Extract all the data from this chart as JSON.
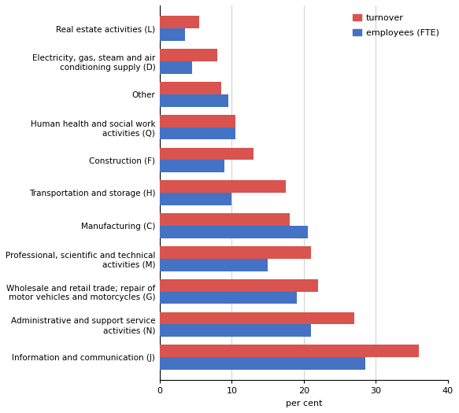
{
  "categories": [
    "Information and communication (J)",
    "Administrative and support service\nactivities (N)",
    "Wholesale and retail trade; repair of\nmotor vehicles and motorcycles (G)",
    "Professional, scientific and technical\nactivities (M)",
    "Manufacturing (C)",
    "Transportation and storage (H)",
    "Construction (F)",
    "Human health and social work\nactivities (Q)",
    "Other",
    "Electricity, gas, steam and air\nconditioning supply (D)",
    "Real estate activities (L)"
  ],
  "turnover": [
    36.0,
    27.0,
    22.0,
    21.0,
    18.0,
    17.5,
    13.0,
    10.5,
    8.5,
    8.0,
    5.5
  ],
  "employees": [
    28.5,
    21.0,
    19.0,
    15.0,
    20.5,
    10.0,
    9.0,
    10.5,
    9.5,
    4.5,
    3.5
  ],
  "turnover_color": "#d9534f",
  "employees_color": "#4472c4",
  "xlim": [
    0,
    40
  ],
  "xticks": [
    0,
    10,
    20,
    30,
    40
  ],
  "xlabel": "per cent",
  "legend_labels": [
    "turnover",
    "employees (FTE)"
  ],
  "bar_height": 0.38,
  "figsize": [
    5.83,
    5.25
  ],
  "dpi": 100
}
